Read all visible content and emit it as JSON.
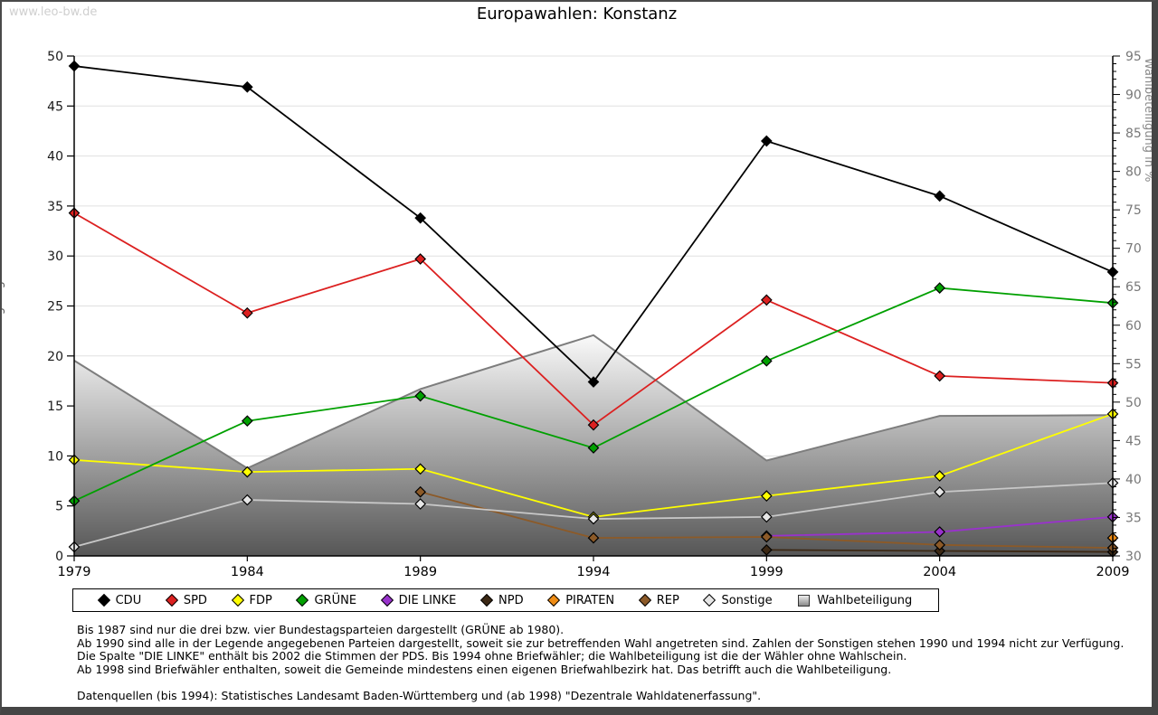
{
  "page": {
    "watermark": "www.leo-bw.de",
    "title": "Europawahlen: Konstanz"
  },
  "chart_data": {
    "type": "line",
    "title": "Europawahlen: Konstanz",
    "x": [
      1979,
      1984,
      1989,
      1994,
      1999,
      2004,
      2009
    ],
    "left_axis": {
      "label": "gültige Stimmen in %",
      "min": 0,
      "max": 50,
      "step": 5,
      "grid": true
    },
    "right_axis": {
      "label": "Wahlbeteiligung in %",
      "min": 30,
      "max": 95,
      "step": 5,
      "minor_step": 1
    },
    "legend_position": "bottom",
    "series": [
      {
        "name": "CDU",
        "color": "#000000",
        "marker_fill": "#000000",
        "values": [
          49.0,
          46.9,
          33.8,
          17.4,
          41.5,
          36.0,
          28.4
        ]
      },
      {
        "name": "SPD",
        "color": "#dc2020",
        "marker_fill": "#dc2020",
        "values": [
          34.3,
          24.3,
          29.7,
          13.1,
          25.6,
          18.0,
          17.3
        ]
      },
      {
        "name": "FDP",
        "color": "#ffff00",
        "marker_fill": "#ffff00",
        "values": [
          9.6,
          8.4,
          8.7,
          3.9,
          6.0,
          8.0,
          14.2
        ]
      },
      {
        "name": "GRÜNE",
        "color": "#00a000",
        "marker_fill": "#00a000",
        "values": [
          5.5,
          13.5,
          16.0,
          10.8,
          19.5,
          26.8,
          25.3
        ]
      },
      {
        "name": "DIE LINKE",
        "color": "#9932cc",
        "marker_fill": "#9932cc",
        "values": [
          null,
          null,
          null,
          null,
          2.0,
          2.4,
          3.9
        ]
      },
      {
        "name": "NPD",
        "color": "#3c2814",
        "marker_fill": "#3c2814",
        "values": [
          null,
          null,
          null,
          null,
          0.6,
          0.5,
          0.4
        ]
      },
      {
        "name": "PIRATEN",
        "color": "#ef8c14",
        "marker_fill": "#ef8c14",
        "values": [
          null,
          null,
          null,
          null,
          null,
          null,
          1.8
        ]
      },
      {
        "name": "REP",
        "color": "#8c5a28",
        "marker_fill": "#8c5a28",
        "values": [
          null,
          null,
          6.4,
          1.8,
          1.9,
          1.1,
          0.8
        ]
      },
      {
        "name": "Sonstige",
        "color": "#c8c8c8",
        "marker_fill": "#e6e6e6",
        "values": [
          0.9,
          5.6,
          5.2,
          3.7,
          3.9,
          6.4,
          7.3
        ]
      }
    ],
    "turnout": {
      "name": "Wahlbeteiligung",
      "axis": "right",
      "style": "area-gradient",
      "edge_color": "#7d7d7d",
      "values": [
        55.4,
        41.4,
        51.7,
        58.7,
        42.4,
        48.2,
        48.3
      ]
    }
  },
  "footnotes": {
    "lines": [
      "Bis 1987 sind nur die drei bzw. vier Bundestagsparteien dargestellt (GRÜNE ab 1980).",
      "Ab 1990 sind alle in der Legende angegebenen Parteien dargestellt, soweit sie zur betreffenden Wahl angetreten sind. Zahlen der Sonstigen stehen 1990 und 1994 nicht zur Verfügung.",
      "Die Spalte \"DIE LINKE\" enthält bis 2002 die Stimmen der PDS. Bis 1994 ohne Briefwähler; die Wahlbeteiligung ist die der Wähler ohne Wahlschein.",
      "Ab 1998 sind Briefwähler enthalten, soweit die Gemeinde mindestens einen eigenen Briefwahlbezirk hat. Das betrifft auch die Wahlbeteiligung.",
      "",
      "Datenquellen (bis 1994): Statistisches Landesamt Baden-Württemberg und (ab 1998) \"Dezentrale Wahldatenerfassung\"."
    ]
  }
}
